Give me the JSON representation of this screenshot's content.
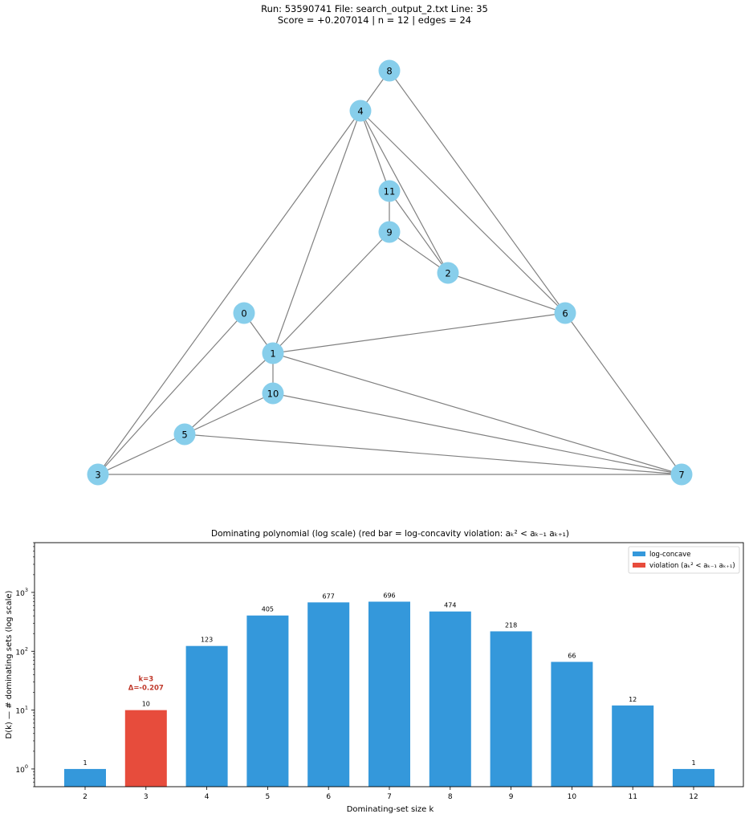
{
  "header": {
    "line1": "Run: 53590741   File: search_output_2.txt   Line: 35",
    "line2": "Score = +0.207014  |  n = 12  |  edges = 24"
  },
  "graph": {
    "nodes": [
      "0",
      "1",
      "2",
      "3",
      "4",
      "5",
      "6",
      "7",
      "8",
      "9",
      "10",
      "11"
    ],
    "edges": [
      [
        "8",
        "4"
      ],
      [
        "8",
        "6"
      ],
      [
        "4",
        "11"
      ],
      [
        "4",
        "2"
      ],
      [
        "4",
        "6"
      ],
      [
        "4",
        "1"
      ],
      [
        "4",
        "3"
      ],
      [
        "11",
        "9"
      ],
      [
        "11",
        "2"
      ],
      [
        "9",
        "2"
      ],
      [
        "9",
        "1"
      ],
      [
        "2",
        "6"
      ],
      [
        "6",
        "1"
      ],
      [
        "6",
        "7"
      ],
      [
        "0",
        "1"
      ],
      [
        "0",
        "3"
      ],
      [
        "1",
        "10"
      ],
      [
        "1",
        "5"
      ],
      [
        "1",
        "7"
      ],
      [
        "10",
        "5"
      ],
      [
        "10",
        "7"
      ],
      [
        "5",
        "3"
      ],
      [
        "5",
        "7"
      ],
      [
        "3",
        "7"
      ]
    ],
    "node_color": "#87ceeb",
    "edge_color": "#808080"
  },
  "chart_data": {
    "type": "bar",
    "title": "Dominating polynomial  (log scale)   (red bar = log-concavity violation:  aₖ² < aₖ₋₁ aₖ₊₁)",
    "xlabel": "Dominating-set size  k",
    "ylabel": "D(k)  —  # dominating sets  (log scale)",
    "y_scale": "log",
    "ylim": [
      0.5,
      7000
    ],
    "categories": [
      "2",
      "3",
      "4",
      "5",
      "6",
      "7",
      "8",
      "9",
      "10",
      "11",
      "12"
    ],
    "values": [
      1,
      10,
      123,
      405,
      677,
      696,
      474,
      218,
      66,
      12,
      1
    ],
    "value_labels": [
      "1",
      "10",
      "123",
      "405",
      "677",
      "696",
      "474",
      "218",
      "66",
      "12",
      "1"
    ],
    "y_ticks": [
      {
        "value": 1,
        "base": "10",
        "exp": "0"
      },
      {
        "value": 10,
        "base": "10",
        "exp": "1"
      },
      {
        "value": 100,
        "base": "10",
        "exp": "2"
      },
      {
        "value": 1000,
        "base": "10",
        "exp": "3"
      }
    ],
    "violation_index": 1,
    "annotation": {
      "line1": "k=3",
      "line2": "Δ=-0.207"
    },
    "colors": {
      "normal": "#3498db",
      "violation": "#e74c3c",
      "annotation": "#c0392b"
    },
    "legend": {
      "placement": "top-right",
      "items": [
        {
          "label": "log-concave",
          "color_key": "normal"
        },
        {
          "label": "violation  (aₖ² < aₖ₋₁ aₖ₊₁)",
          "color_key": "violation"
        }
      ]
    }
  }
}
